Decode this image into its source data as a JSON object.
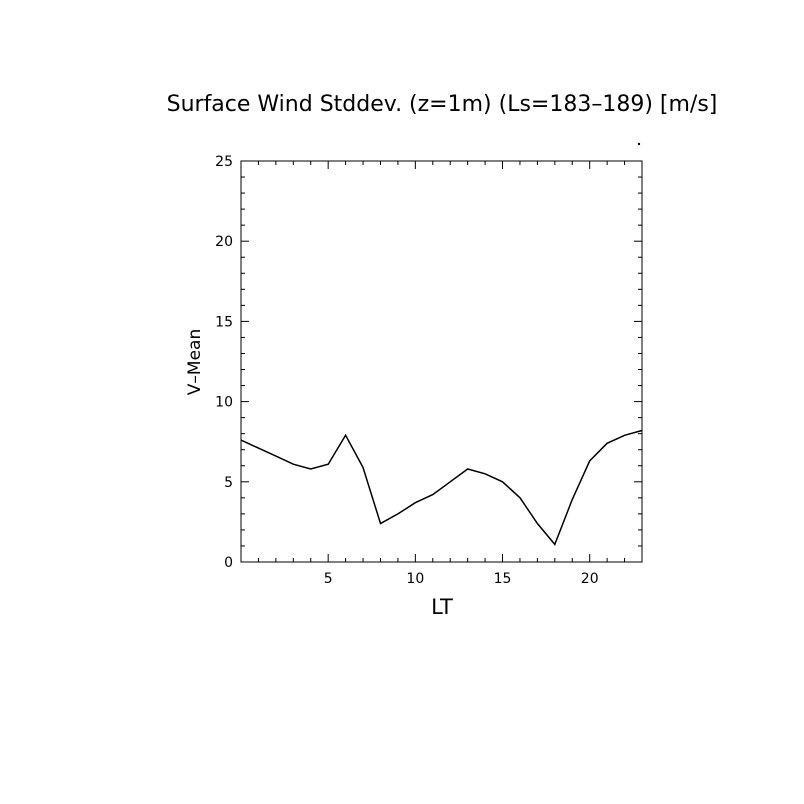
{
  "chart_data": {
    "type": "line",
    "title": "Surface Wind Stddev. (z=1m) (Ls=183–189) [m/s]",
    "xlabel": "LT",
    "ylabel": "V–Mean",
    "xlim": [
      0,
      23
    ],
    "ylim": [
      0,
      25
    ],
    "x_ticks": [
      5,
      10,
      15,
      20
    ],
    "y_ticks": [
      0,
      5,
      10,
      15,
      20,
      25
    ],
    "x_minor_step": 1,
    "y_minor_step": 1,
    "grid": false,
    "series": [
      {
        "x": [
          0,
          1,
          2,
          3,
          4,
          5,
          6,
          7,
          8,
          9,
          10,
          11,
          12,
          13,
          14,
          15,
          16,
          17,
          18,
          19,
          20,
          21,
          22,
          23
        ],
        "values": [
          7.6,
          7.1,
          6.6,
          6.1,
          5.8,
          6.1,
          7.9,
          5.9,
          2.4,
          3.0,
          3.7,
          4.2,
          5.0,
          5.8,
          5.5,
          5.0,
          4.0,
          2.4,
          1.1,
          3.9,
          6.3,
          7.4,
          7.9,
          8.2
        ]
      }
    ]
  }
}
